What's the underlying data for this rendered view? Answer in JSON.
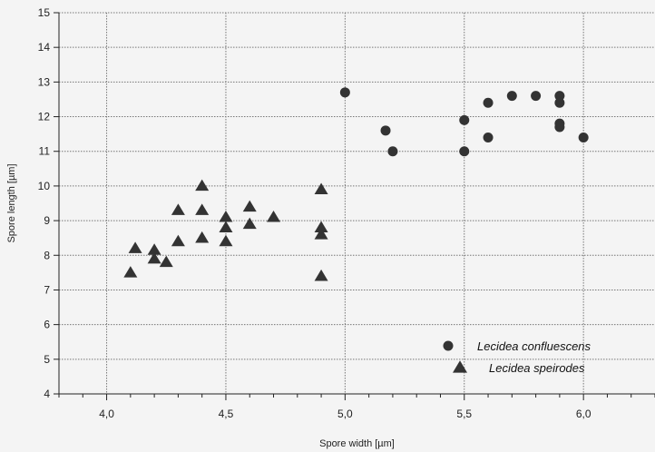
{
  "chart_data": {
    "type": "scatter",
    "xlabel": "Spore width [µm]",
    "ylabel": "Spore length [µm]",
    "xlim": [
      3.8,
      6.3
    ],
    "ylim": [
      4,
      15
    ],
    "x_ticks": [
      "4,0",
      "4,5",
      "5,0",
      "5,5",
      "6,0"
    ],
    "x_tick_values": [
      4.0,
      4.5,
      5.0,
      5.5,
      6.0
    ],
    "y_ticks": [
      "4",
      "5",
      "6",
      "7",
      "8",
      "9",
      "10",
      "11",
      "12",
      "13",
      "14",
      "15"
    ],
    "y_tick_values": [
      4,
      5,
      6,
      7,
      8,
      9,
      10,
      11,
      12,
      13,
      14,
      15
    ],
    "grid": true,
    "legend_position": "bottom-right",
    "series": [
      {
        "name": "Lecidea confluescens",
        "marker": "circle",
        "color": "#333333",
        "points": [
          [
            5.0,
            12.7
          ],
          [
            5.17,
            11.6
          ],
          [
            5.2,
            11.0
          ],
          [
            5.5,
            11.9
          ],
          [
            5.5,
            11.0
          ],
          [
            5.6,
            12.4
          ],
          [
            5.6,
            11.4
          ],
          [
            5.7,
            12.6
          ],
          [
            5.8,
            12.6
          ],
          [
            5.9,
            12.6
          ],
          [
            5.9,
            12.4
          ],
          [
            5.9,
            11.8
          ],
          [
            5.9,
            11.7
          ],
          [
            6.0,
            11.4
          ]
        ]
      },
      {
        "name": "Lecidea speirodes",
        "marker": "triangle",
        "color": "#333333",
        "points": [
          [
            4.1,
            7.5
          ],
          [
            4.12,
            8.2
          ],
          [
            4.2,
            8.15
          ],
          [
            4.2,
            7.9
          ],
          [
            4.25,
            7.8
          ],
          [
            4.3,
            9.3
          ],
          [
            4.3,
            8.4
          ],
          [
            4.4,
            10.0
          ],
          [
            4.4,
            9.3
          ],
          [
            4.4,
            8.5
          ],
          [
            4.5,
            9.1
          ],
          [
            4.5,
            8.8
          ],
          [
            4.5,
            8.4
          ],
          [
            4.6,
            9.4
          ],
          [
            4.6,
            8.9
          ],
          [
            4.7,
            9.1
          ],
          [
            4.9,
            9.9
          ],
          [
            4.9,
            8.8
          ],
          [
            4.9,
            8.6
          ],
          [
            4.9,
            7.4
          ]
        ]
      }
    ]
  }
}
